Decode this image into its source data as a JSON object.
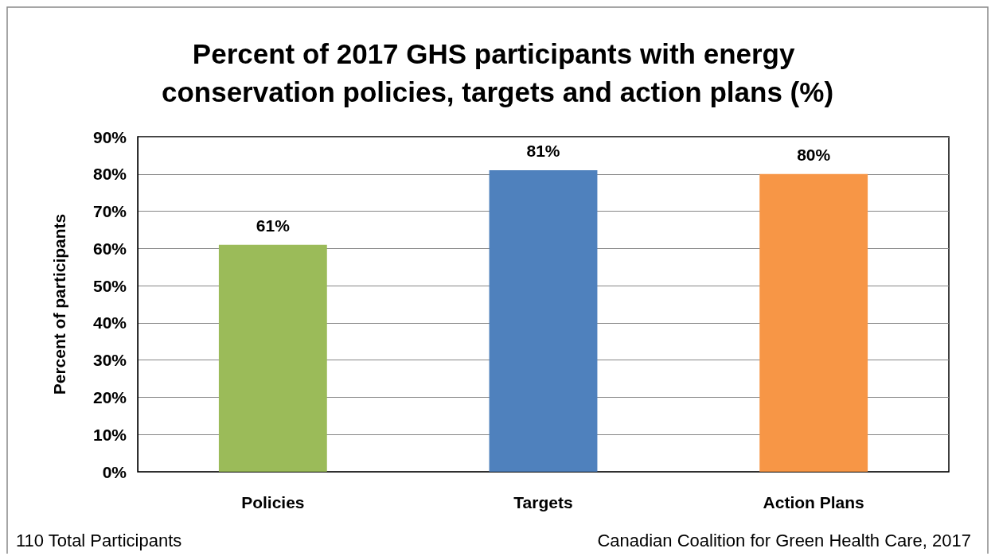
{
  "chart_data": {
    "type": "bar",
    "title": "Percent of 2017 GHS participants with energy conservation policies, targets and action plans (%)",
    "ylabel": "Percent of participants",
    "categories": [
      "Policies",
      "Targets",
      "Action Plans"
    ],
    "values": [
      61,
      81,
      80
    ],
    "colors": [
      "#9bbb59",
      "#4f81bd",
      "#f79646"
    ],
    "value_labels": [
      "61%",
      "81%",
      "80%"
    ],
    "ylim": [
      0,
      90
    ],
    "yticks": [
      {
        "value": 0,
        "label": "0%"
      },
      {
        "value": 10,
        "label": "10%"
      },
      {
        "value": 20,
        "label": "20%"
      },
      {
        "value": 30,
        "label": "30%"
      },
      {
        "value": 40,
        "label": "40%"
      },
      {
        "value": 50,
        "label": "50%"
      },
      {
        "value": 60,
        "label": "60%"
      },
      {
        "value": 70,
        "label": "70%"
      },
      {
        "value": 80,
        "label": "80%"
      },
      {
        "value": 90,
        "label": "90%"
      }
    ],
    "grid": "y",
    "annotations": [
      "110 Total Participants",
      "Canadian Coalition for Green Health Care, 2017"
    ]
  }
}
